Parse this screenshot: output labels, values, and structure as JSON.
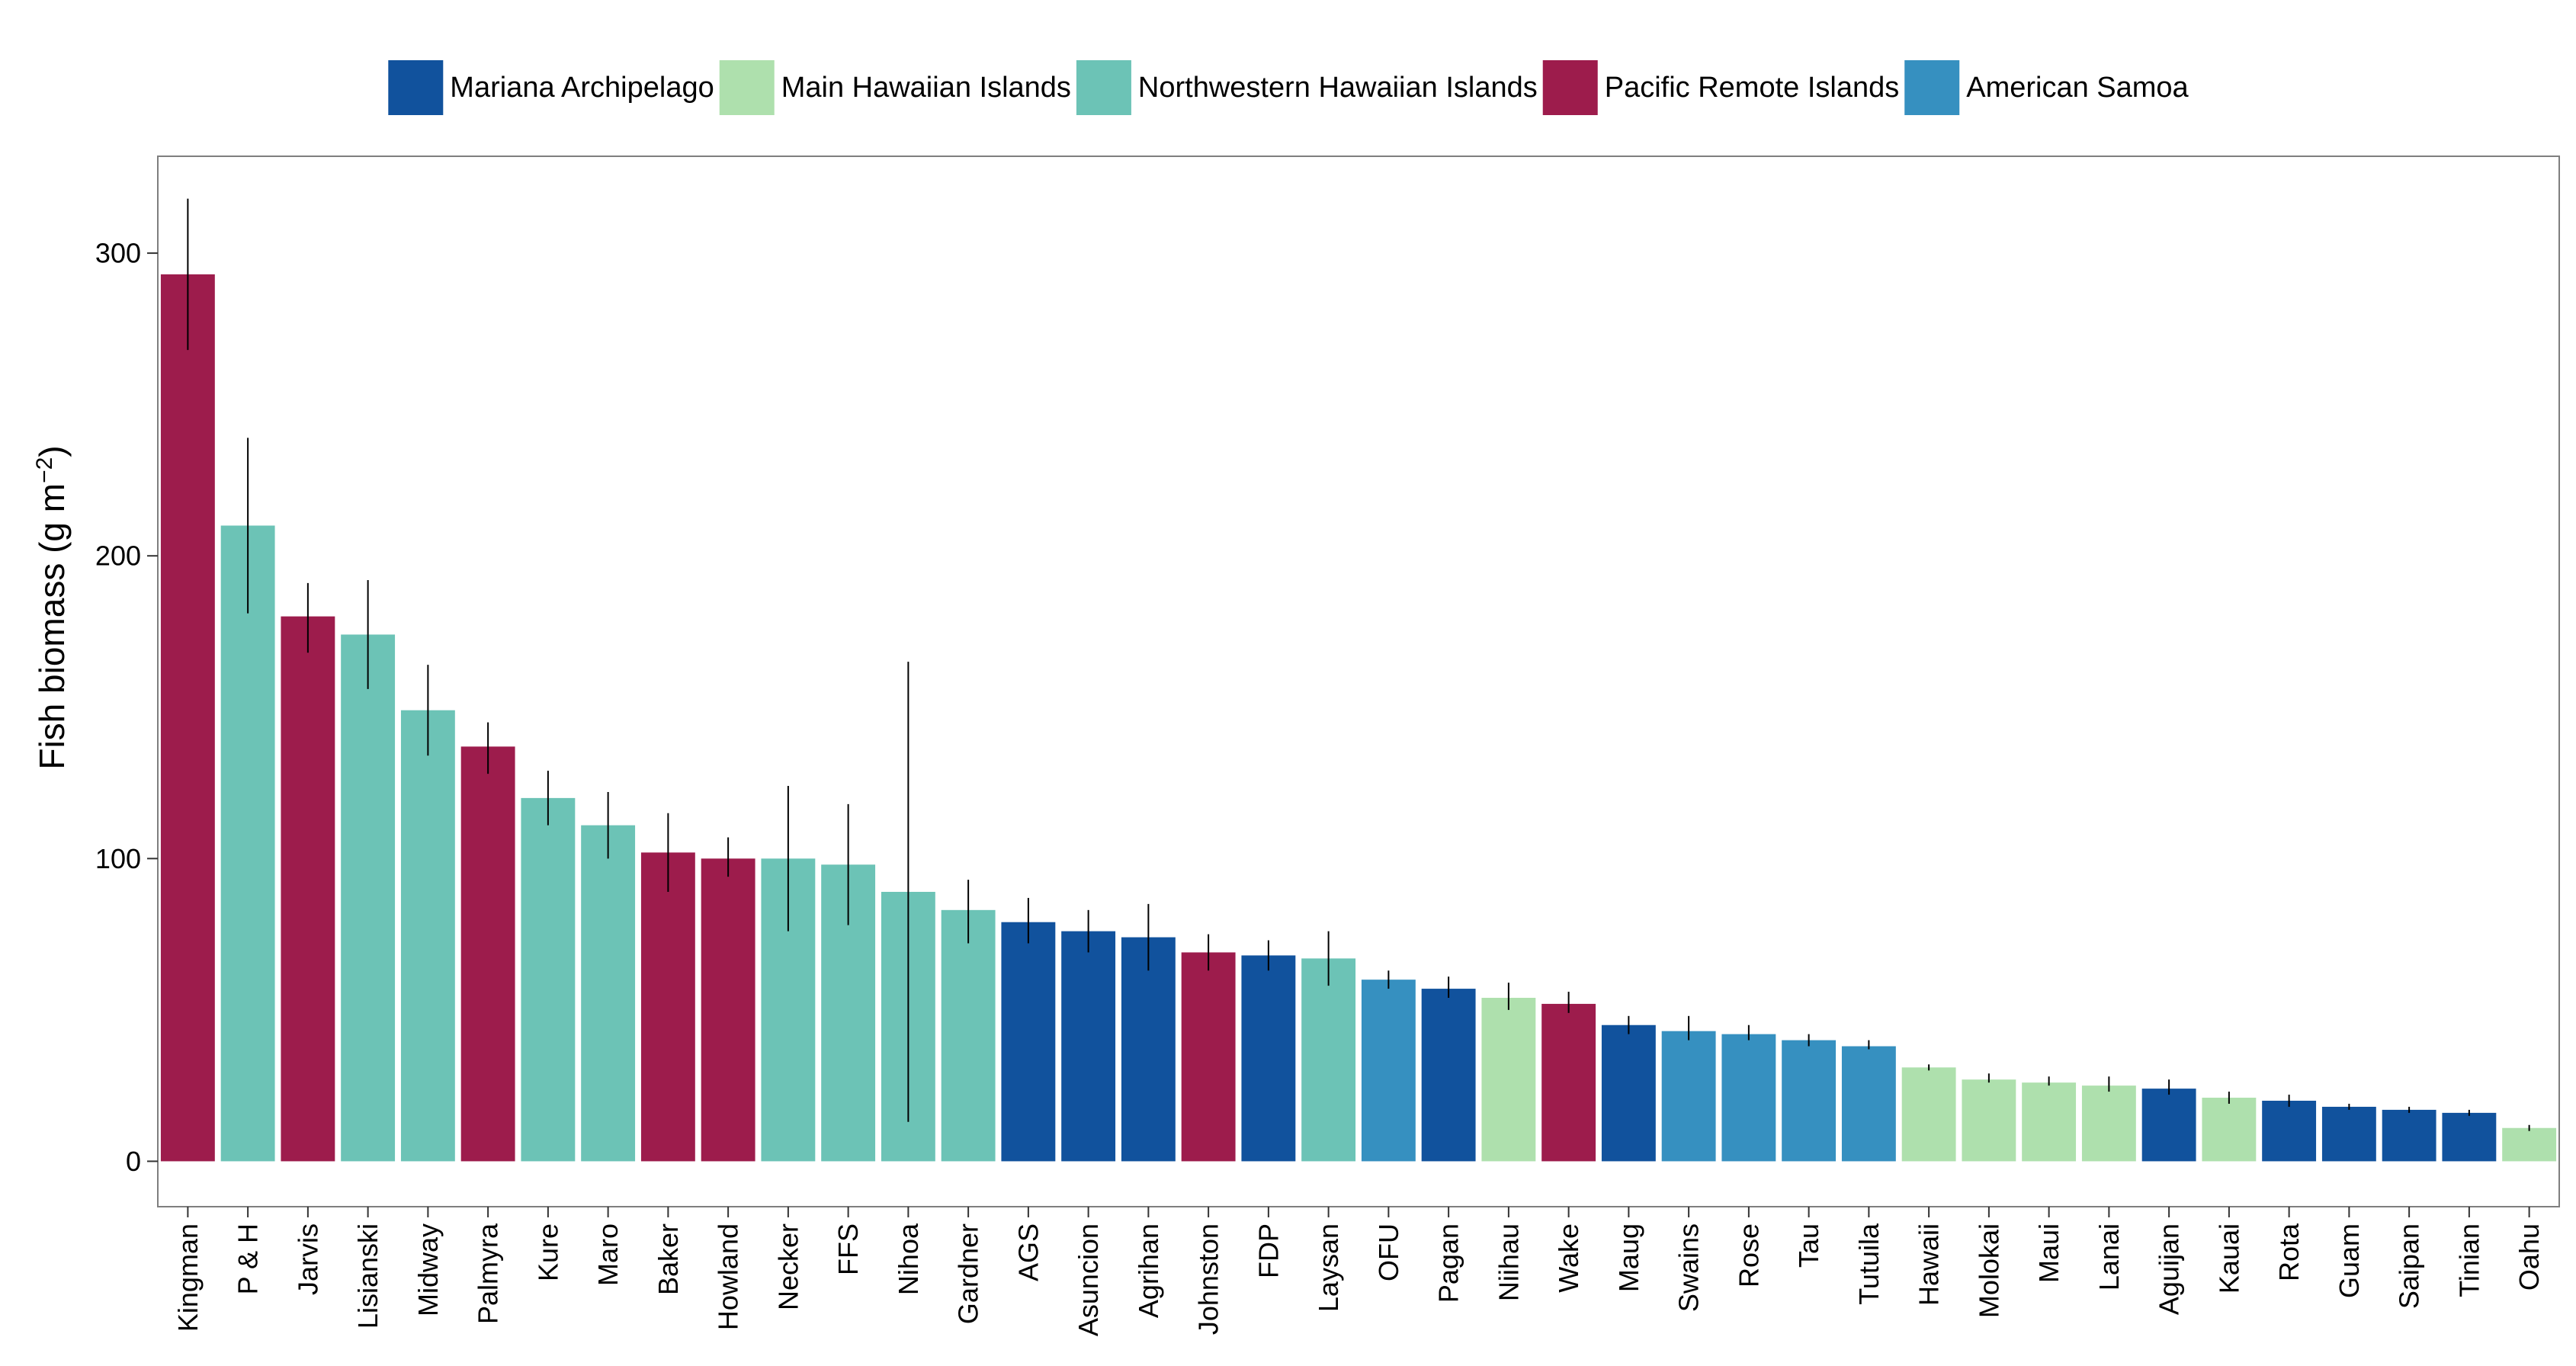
{
  "chart_data": {
    "type": "bar",
    "title": "",
    "xlabel": "",
    "ylabel": "Fish biomass (g m",
    "ylabel_sup": "−2",
    "ylabel_close": ")",
    "ylim": [
      -15,
      332
    ],
    "yticks": [
      0,
      100,
      200,
      300
    ],
    "grid": false,
    "legend_position": "top",
    "groups": [
      {
        "name": "Mariana Archipelago",
        "color": "#11529d"
      },
      {
        "name": "Main Hawaiian Islands",
        "color": "#aee0ad"
      },
      {
        "name": "Northwestern Hawaiian Islands",
        "color": "#6cc3b6"
      },
      {
        "name": "Pacific Remote Islands",
        "color": "#9d1c4c"
      },
      {
        "name": "American Samoa",
        "color": "#3690c0"
      }
    ],
    "categories": [
      "Kingman",
      "P & H",
      "Jarvis",
      "Lisianski",
      "Midway",
      "Palmyra",
      "Kure",
      "Maro",
      "Baker",
      "Howland",
      "Necker",
      "FFS",
      "Nihoa",
      "Gardner",
      "AGS",
      "Asuncion",
      "Agrihan",
      "Johnston",
      "FDP",
      "Laysan",
      "OFU",
      "Pagan",
      "Niihau",
      "Wake",
      "Maug",
      "Swains",
      "Rose",
      "Tau",
      "Tutuila",
      "Hawaii",
      "Molokai",
      "Maui",
      "Lanai",
      "Aguijan",
      "Kauai",
      "Rota",
      "Guam",
      "Saipan",
      "Tinian",
      "Oahu"
    ],
    "values": [
      293,
      210,
      180,
      174,
      149,
      137,
      120,
      111,
      102,
      100,
      100,
      98,
      89,
      83,
      79,
      76,
      74,
      69,
      68,
      67,
      60,
      57,
      54,
      52,
      45,
      43,
      42,
      40,
      38,
      31,
      27,
      26,
      25,
      24,
      21,
      20,
      18,
      17,
      16,
      11
    ],
    "error_low": [
      268,
      181,
      168,
      156,
      134,
      128,
      111,
      100,
      89,
      94,
      76,
      78,
      13,
      72,
      72,
      69,
      63,
      63,
      63,
      58,
      57,
      54,
      50,
      49,
      42,
      40,
      40,
      38,
      37,
      30,
      26,
      25,
      23,
      22,
      19,
      18,
      17,
      16,
      15,
      10
    ],
    "error_high": [
      318,
      239,
      191,
      192,
      164,
      145,
      129,
      122,
      115,
      107,
      124,
      118,
      165,
      93,
      87,
      83,
      85,
      75,
      73,
      76,
      63,
      61,
      59,
      56,
      48,
      48,
      45,
      42,
      40,
      32,
      29,
      28,
      28,
      27,
      23,
      22,
      19,
      18,
      17,
      12
    ],
    "group_index": [
      3,
      2,
      3,
      2,
      2,
      3,
      2,
      2,
      3,
      3,
      2,
      2,
      2,
      2,
      0,
      0,
      0,
      3,
      0,
      2,
      4,
      0,
      1,
      3,
      0,
      4,
      4,
      4,
      4,
      1,
      1,
      1,
      1,
      0,
      1,
      0,
      0,
      0,
      0,
      1
    ]
  }
}
